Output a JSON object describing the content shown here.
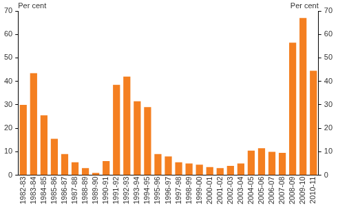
{
  "chart_data": {
    "type": "bar",
    "ylabel": "Per cent",
    "y2label": "Per cent",
    "categories": [
      "1982-83",
      "1983-84",
      "1984-85",
      "1985-86",
      "1986-87",
      "1987-88",
      "1988-89",
      "1989-90",
      "1990-91",
      "1991-92",
      "1992-93",
      "1993-94",
      "1994-95",
      "1995-96",
      "1996-97",
      "1997-98",
      "1998-99",
      "1999-00",
      "2000-01",
      "2001-02",
      "2002-03",
      "2003-04",
      "2004-05",
      "2005-06",
      "2006-07",
      "2007-08",
      "2008-09",
      "2009-10",
      "2010-11"
    ],
    "values": [
      30,
      43.5,
      25.5,
      15.5,
      9,
      5.5,
      3,
      1,
      6,
      38.5,
      42,
      31.5,
      29,
      9,
      8,
      5.5,
      5,
      4.5,
      3.5,
      3,
      4,
      5,
      10.5,
      11.5,
      10,
      9.5,
      56.5,
      67,
      44.5
    ],
    "color": "#f47f20",
    "ylim": [
      0,
      70
    ],
    "yticks": [
      0,
      10,
      20,
      30,
      40,
      50,
      60,
      70
    ],
    "y2lim": [
      0,
      70
    ],
    "y2ticks": [
      0,
      10,
      20,
      30,
      40,
      50,
      60,
      70
    ],
    "grid": false
  }
}
